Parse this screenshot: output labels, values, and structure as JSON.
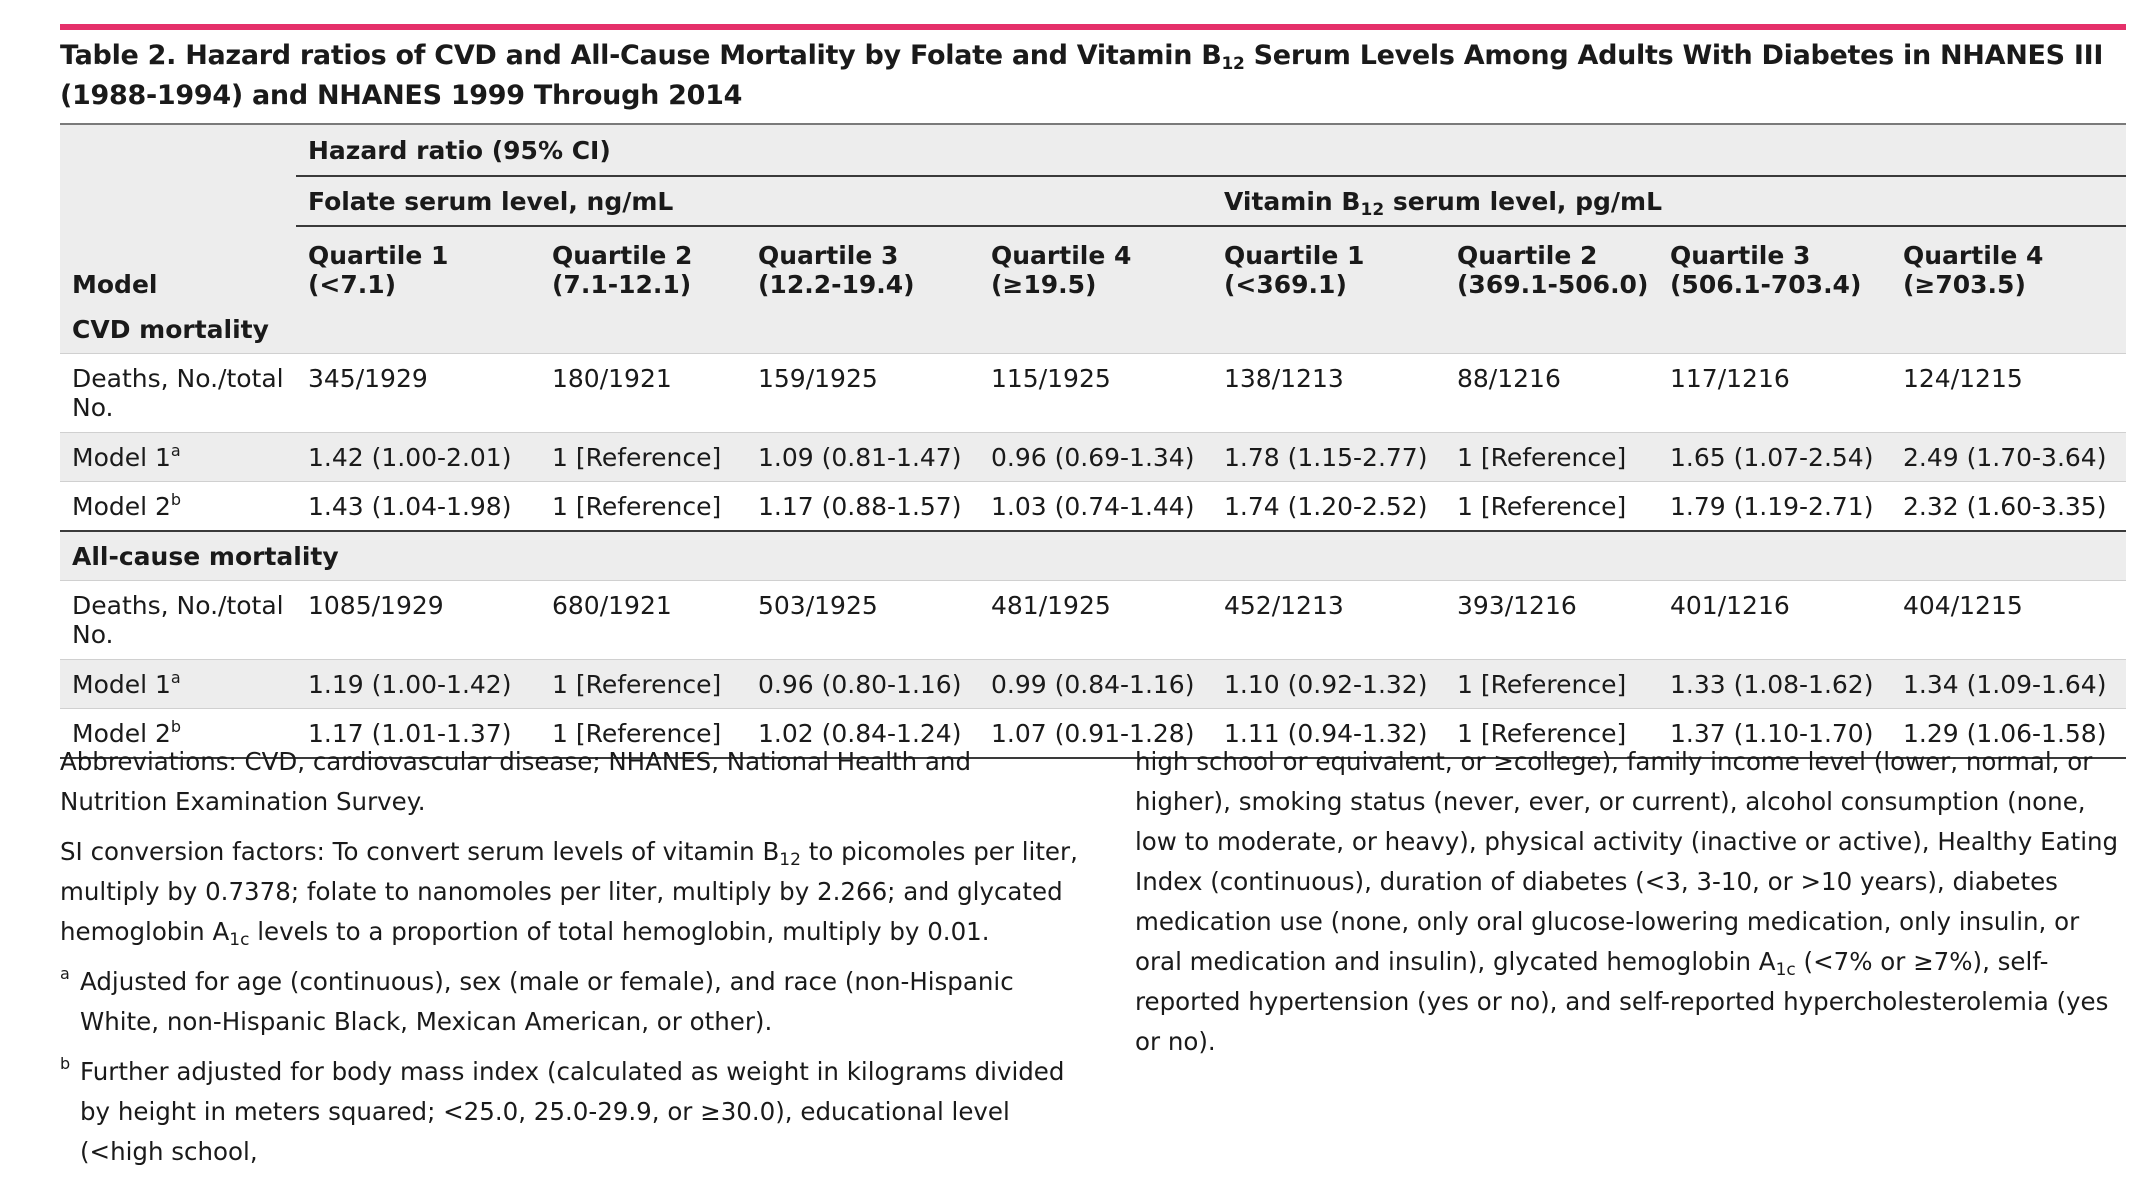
{
  "caption": {
    "part1": "Table 2. Hazard ratios of CVD and All-Cause Mortality by Folate and Vitamin B",
    "sub": "12",
    "part2": " Serum Levels Among Adults With Diabetes in NHANES III (1988-1994) and NHANES 1999 Through 2014"
  },
  "header": {
    "model_label": "Model",
    "hr_label": "Hazard ratio (95% CI)",
    "folate_label": "Folate serum level, ng/mL",
    "b12_label_pre": "Vitamin B",
    "b12_label_sub": "12",
    "b12_label_post": " serum level, pg/mL",
    "columns": [
      {
        "name": "Quartile 1",
        "range": "(<7.1)"
      },
      {
        "name": "Quartile 2",
        "range": "(7.1-12.1)"
      },
      {
        "name": "Quartile 3",
        "range": "(12.2-19.4)"
      },
      {
        "name": "Quartile 4",
        "range": "(≥19.5)"
      },
      {
        "name": "Quartile 1",
        "range": "(<369.1)"
      },
      {
        "name": "Quartile 2",
        "range": "(369.1-506.0)"
      },
      {
        "name": "Quartile 3",
        "range": "(506.1-703.4)"
      },
      {
        "name": "Quartile 4",
        "range": "(≥703.5)"
      }
    ]
  },
  "sections": [
    {
      "title": "CVD mortality",
      "rows": [
        {
          "label": "Deaths, No./total No.",
          "sup": "",
          "values": [
            "345/1929",
            "180/1921",
            "159/1925",
            "115/1925",
            "138/1213",
            "88/1216",
            "117/1216",
            "124/1215"
          ]
        },
        {
          "label": "Model 1",
          "sup": "a",
          "values": [
            "1.42 (1.00-2.01)",
            "1 [Reference]",
            "1.09 (0.81-1.47)",
            "0.96 (0.69-1.34)",
            "1.78 (1.15-2.77)",
            "1 [Reference]",
            "1.65 (1.07-2.54)",
            "2.49 (1.70-3.64)"
          ]
        },
        {
          "label": "Model 2",
          "sup": "b",
          "values": [
            "1.43 (1.04-1.98)",
            "1 [Reference]",
            "1.17 (0.88-1.57)",
            "1.03 (0.74-1.44)",
            "1.74 (1.20-2.52)",
            "1 [Reference]",
            "1.79 (1.19-2.71)",
            "2.32 (1.60-3.35)"
          ]
        }
      ]
    },
    {
      "title": "All-cause mortality",
      "rows": [
        {
          "label": "Deaths, No./total No.",
          "sup": "",
          "values": [
            "1085/1929",
            "680/1921",
            "503/1925",
            "481/1925",
            "452/1213",
            "393/1216",
            "401/1216",
            "404/1215"
          ]
        },
        {
          "label": "Model 1",
          "sup": "a",
          "values": [
            "1.19 (1.00-1.42)",
            "1 [Reference]",
            "0.96 (0.80-1.16)",
            "0.99 (0.84-1.16)",
            "1.10 (0.92-1.32)",
            "1 [Reference]",
            "1.33 (1.08-1.62)",
            "1.34 (1.09-1.64)"
          ]
        },
        {
          "label": "Model 2",
          "sup": "b",
          "values": [
            "1.17 (1.01-1.37)",
            "1 [Reference]",
            "1.02 (0.84-1.24)",
            "1.07 (0.91-1.28)",
            "1.11 (0.94-1.32)",
            "1 [Reference]",
            "1.37 (1.10-1.70)",
            "1.29 (1.06-1.58)"
          ]
        }
      ]
    }
  ],
  "notes": {
    "abbreviations": "Abbreviations: CVD, cardiovascular disease; NHANES, National Health and Nutrition Examination Survey.",
    "si_part1": "SI conversion factors: To convert serum levels of vitamin B",
    "si_sub1": "12",
    "si_part2": " to picomoles per liter, multiply by 0.7378; folate to nanomoles per liter, multiply by 2.266; and glycated hemoglobin A",
    "si_sub2": "1c",
    "si_part3": " levels to a proportion of total hemoglobin, multiply by 0.01.",
    "fn_a_mark": "a",
    "fn_a_text": "Adjusted for age (continuous), sex (male or female), and race (non-Hispanic White, non-Hispanic Black, Mexican American, or other).",
    "fn_b_mark": "b",
    "fn_b_text": "Further adjusted for body mass index (calculated as weight in kilograms divided by height in meters squared; <25.0, 25.0-29.9, or ≥30.0), educational level (<high school,",
    "right_part1": "high school or equivalent, or ≥college), family income level (lower, normal, or higher), smoking status (never, ever, or current), alcohol consumption (none, low to moderate, or heavy), physical activity (inactive or active), Healthy Eating Index (continuous), duration of diabetes (<3, 3-10, or >10 years), diabetes medication use (none, only oral glucose-lowering medication, only insulin, or oral medication and insulin), glycated hemoglobin A",
    "right_sub": "1c",
    "right_part2": " (<7% or ≥7%), self-reported hypertension (yes or no), and self-reported hypercholesterolemia (yes or no)."
  }
}
